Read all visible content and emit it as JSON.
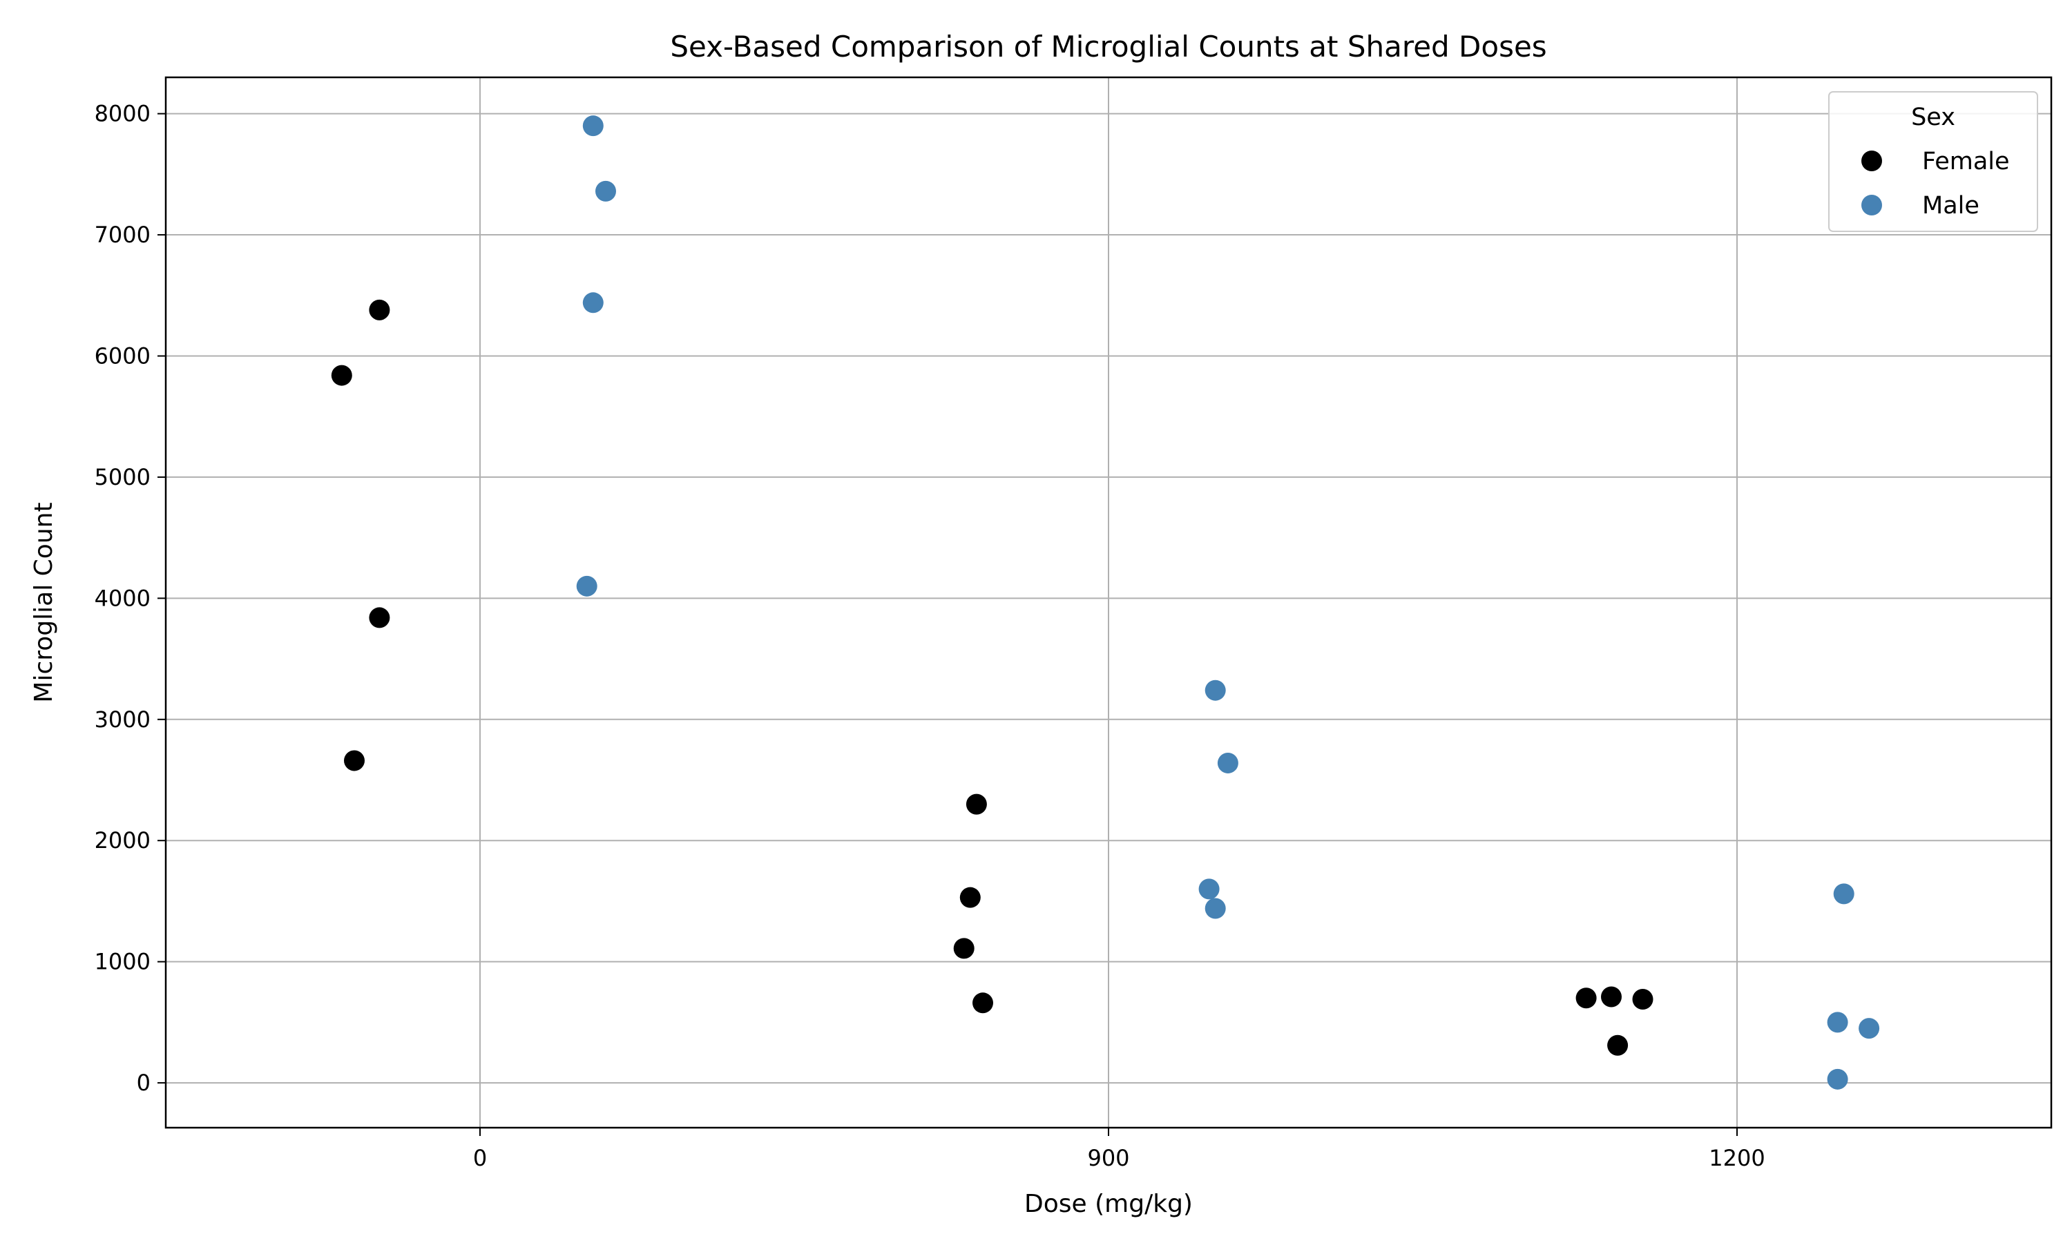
{
  "chart_data": {
    "type": "scatter",
    "title": "Sex-Based Comparison of Microglial Counts at Shared Doses",
    "xlabel": "Dose (mg/kg)",
    "ylabel": "Microglial Count",
    "x_categories": [
      "0",
      "900",
      "1200"
    ],
    "x_tick_labels": [
      "0",
      "900",
      "1200"
    ],
    "y_ticks": [
      0,
      1000,
      2000,
      3000,
      4000,
      5000,
      6000,
      7000,
      8000
    ],
    "y_tick_labels": [
      "0",
      "1000",
      "2000",
      "3000",
      "4000",
      "5000",
      "6000",
      "7000",
      "8000"
    ],
    "ylim": [
      -370,
      8300
    ],
    "grid": true,
    "legend_title": "Sex",
    "legend_position": "top-right",
    "series": [
      {
        "name": "Female",
        "color": "#000000",
        "points": [
          {
            "category": "0",
            "jitter": -0.22,
            "y": 5840
          },
          {
            "category": "0",
            "jitter": -0.16,
            "y": 6380
          },
          {
            "category": "0",
            "jitter": -0.16,
            "y": 3840
          },
          {
            "category": "0",
            "jitter": -0.2,
            "y": 2660
          },
          {
            "category": "900",
            "jitter": -0.21,
            "y": 2300
          },
          {
            "category": "900",
            "jitter": -0.22,
            "y": 1530
          },
          {
            "category": "900",
            "jitter": -0.23,
            "y": 1110
          },
          {
            "category": "900",
            "jitter": -0.2,
            "y": 660
          },
          {
            "category": "1200",
            "jitter": -0.24,
            "y": 700
          },
          {
            "category": "1200",
            "jitter": -0.2,
            "y": 710
          },
          {
            "category": "1200",
            "jitter": -0.15,
            "y": 690
          },
          {
            "category": "1200",
            "jitter": -0.19,
            "y": 310
          }
        ]
      },
      {
        "name": "Male",
        "color": "#4682b4",
        "points": [
          {
            "category": "0",
            "jitter": 0.18,
            "y": 7900
          },
          {
            "category": "0",
            "jitter": 0.2,
            "y": 7360
          },
          {
            "category": "0",
            "jitter": 0.18,
            "y": 6440
          },
          {
            "category": "0",
            "jitter": 0.17,
            "y": 4100
          },
          {
            "category": "900",
            "jitter": 0.17,
            "y": 3240
          },
          {
            "category": "900",
            "jitter": 0.19,
            "y": 2640
          },
          {
            "category": "900",
            "jitter": 0.16,
            "y": 1600
          },
          {
            "category": "900",
            "jitter": 0.17,
            "y": 1440
          },
          {
            "category": "1200",
            "jitter": 0.17,
            "y": 1560
          },
          {
            "category": "1200",
            "jitter": 0.16,
            "y": 500
          },
          {
            "category": "1200",
            "jitter": 0.21,
            "y": 450
          },
          {
            "category": "1200",
            "jitter": 0.16,
            "y": 30
          }
        ]
      }
    ]
  }
}
